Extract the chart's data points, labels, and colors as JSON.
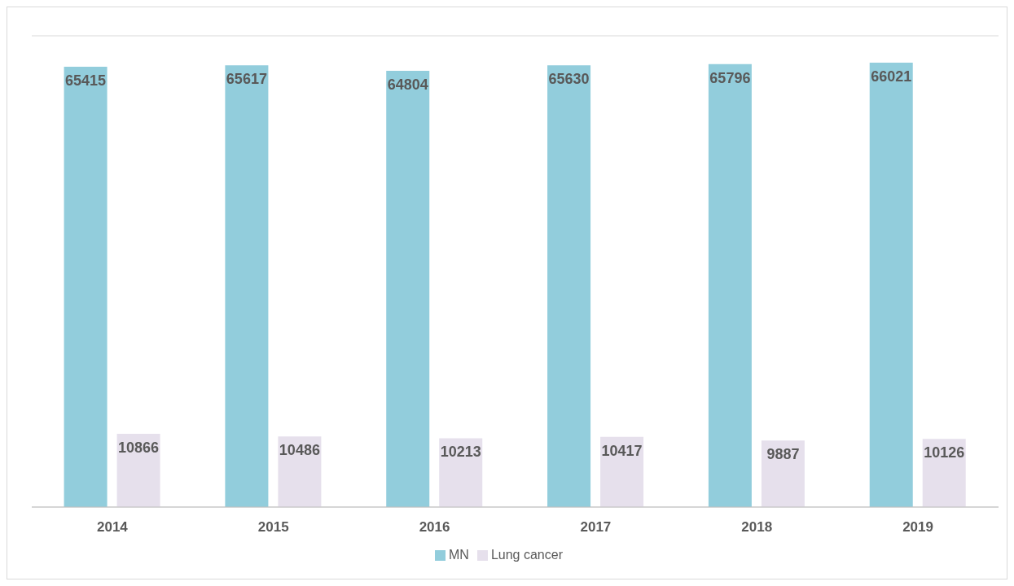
{
  "chart_data": {
    "type": "bar",
    "categories": [
      "2014",
      "2015",
      "2016",
      "2017",
      "2018",
      "2019"
    ],
    "series": [
      {
        "name": "MN",
        "color": "#92cddc",
        "values": [
          65415,
          65617,
          64804,
          65630,
          65796,
          66021
        ]
      },
      {
        "name": "Lung cancer",
        "color": "#e6e0ec",
        "values": [
          10866,
          10486,
          10213,
          10417,
          9887,
          10126
        ]
      }
    ],
    "ylim": [
      0,
      70000
    ],
    "tick_labels": "x",
    "grid": "y",
    "legend": "bottom",
    "data_labels": true
  }
}
